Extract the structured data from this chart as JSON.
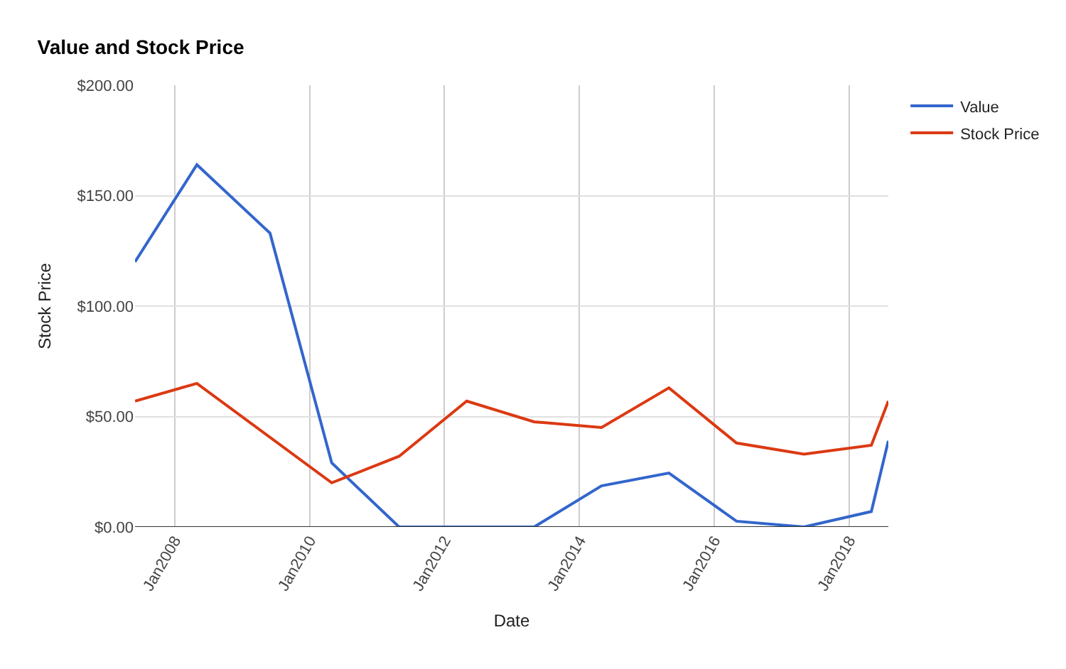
{
  "chart_data": {
    "type": "line",
    "title": "Value and Stock Price",
    "xlabel": "Date",
    "ylabel": "Stock Price",
    "x": [
      "2007-06",
      "2008-05",
      "2009-06",
      "2010-05",
      "2011-05",
      "2012-05",
      "2013-05",
      "2014-05",
      "2015-05",
      "2016-05",
      "2017-05",
      "2018-05",
      "2018-08"
    ],
    "series": [
      {
        "name": "Value",
        "color": "#3366cc",
        "values": [
          120,
          164,
          133,
          29,
          0,
          null,
          0,
          18.6,
          24.4,
          2.6,
          0,
          7,
          39
        ]
      },
      {
        "name": "Stock Price",
        "color": "#dc3912",
        "values": [
          57,
          65,
          null,
          20,
          32,
          57,
          47.6,
          45,
          63,
          38,
          33,
          37,
          57
        ]
      }
    ],
    "xlim": [
      "2007-06",
      "2018-08"
    ],
    "xticks": [
      {
        "value": "2008-01",
        "label": "Jan2008"
      },
      {
        "value": "2010-01",
        "label": "Jan2010"
      },
      {
        "value": "2012-01",
        "label": "Jan2012"
      },
      {
        "value": "2014-01",
        "label": "Jan2014"
      },
      {
        "value": "2016-01",
        "label": "Jan2016"
      },
      {
        "value": "2018-01",
        "label": "Jan2018"
      }
    ],
    "ylim": [
      0,
      200
    ],
    "yticks": [
      {
        "value": 0,
        "label": "$0.00"
      },
      {
        "value": 50,
        "label": "$50.00"
      },
      {
        "value": 100,
        "label": "$100.00"
      },
      {
        "value": 150,
        "label": "$150.00"
      },
      {
        "value": 200,
        "label": "$200.00"
      }
    ],
    "grid": true,
    "legend": "top right",
    "marker": "none",
    "line_style": "solid"
  }
}
